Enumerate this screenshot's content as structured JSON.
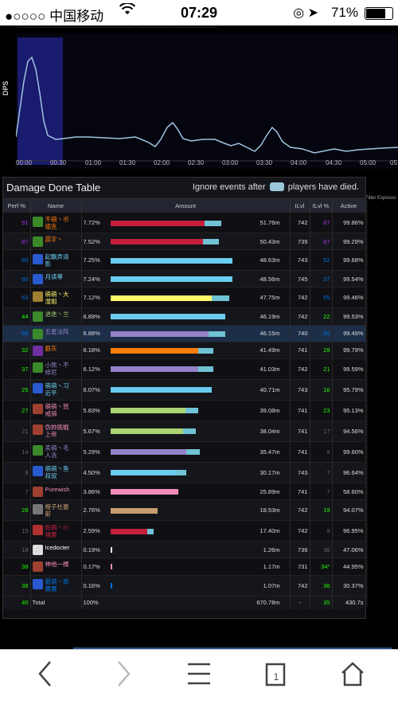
{
  "status": {
    "carrier": "●○○○○ 中国移动",
    "time": "07:29",
    "battery": "71%"
  },
  "graph": {
    "ylabel": "DPS",
    "ticks": [
      "00:00",
      "00:30",
      "01:00",
      "01:30",
      "02:00",
      "02:30",
      "03:00",
      "03:30",
      "04:00",
      "04:30",
      "05:00",
      "05"
    ]
  },
  "panel": {
    "title": "Damage Done Table",
    "ignore_pre": "Ignore events after",
    "ignore_post": "players have died.",
    "filter_label": "Filter Expressi",
    "headers": {
      "perf": "Perf %",
      "name": "Name",
      "amount": "Amount",
      "ilvl": "ILvl",
      "ilvlp": "ILvl %",
      "active": "Active"
    }
  },
  "rows": [
    {
      "perf": "91",
      "name": "不萌丶币\n德克",
      "pct": "7.72%",
      "amt": "51.76m",
      "ilvl": "742",
      "ilp": "87",
      "act": "99.86%",
      "bar": 0.82,
      "color": "#c41f3b",
      "bar2": "#6fc3d4",
      "perfc": "#a335ee",
      "namec": "#ff7d0a",
      "icon": "#3a8a2a"
    },
    {
      "perf": "87",
      "name": "晨宇丶",
      "pct": "7.52%",
      "amt": "50.43m",
      "ilvl": "739",
      "ilp": "87",
      "act": "99.29%",
      "bar": 0.8,
      "color": "#c41f3b",
      "bar2": "#6fc3d4",
      "perfc": "#a335ee",
      "namec": "#ff7d0a",
      "icon": "#3a8a2a"
    },
    {
      "perf": "60",
      "name": "起飘弄清\n影",
      "pct": "7.25%",
      "amt": "48.63m",
      "ilvl": "743",
      "ilp": "52",
      "act": "99.68%",
      "bar": 0.9,
      "color": "#69ccf0",
      "bar2": "#69ccf0",
      "perfc": "#0070dd",
      "namec": "#69ccf0",
      "icon": "#2a5ad0"
    },
    {
      "perf": "60",
      "name": "月读尊",
      "pct": "7.24%",
      "amt": "48.56m",
      "ilvl": "745",
      "ilp": "37",
      "act": "99.54%",
      "bar": 0.9,
      "color": "#69ccf0",
      "bar2": "#69ccf0",
      "perfc": "#0070dd",
      "namec": "#69ccf0",
      "icon": "#2a5ad0"
    },
    {
      "perf": "63",
      "name": "萌萌丶大\n湿姐",
      "pct": "7.12%",
      "amt": "47.75m",
      "ilvl": "742",
      "ilp": "55",
      "act": "99.46%",
      "bar": 0.88,
      "color": "#fff569",
      "bar2": "#6fc3d4",
      "perfc": "#0070dd",
      "namec": "#fff569",
      "icon": "#a08030"
    },
    {
      "perf": "44",
      "name": "进迭丶兰",
      "pct": "6.89%",
      "amt": "46.19m",
      "ilvl": "742",
      "ilp": "22",
      "act": "99.53%",
      "bar": 0.85,
      "color": "#69ccf0",
      "bar2": "#69ccf0",
      "perfc": "#1eff00",
      "namec": "#abd473",
      "icon": "#3a8a2a"
    },
    {
      "perf": "66",
      "name": "五星法阵",
      "pct": "6.88%",
      "amt": "46.15m",
      "ilvl": "740",
      "ilp": "80",
      "act": "99.49%",
      "bar": 0.85,
      "color": "#9482c9",
      "bar2": "#6fc3d4",
      "perfc": "#0070dd",
      "namec": "#9482c9",
      "icon": "#3a8a2a",
      "sel": true
    },
    {
      "perf": "32",
      "name": "狠灰",
      "pct": "6.18%",
      "amt": "41.49m",
      "ilvl": "741",
      "ilp": "28",
      "act": "99.79%",
      "bar": 0.76,
      "color": "#ff7d0a",
      "bar2": "#6fc3d4",
      "perfc": "#1eff00",
      "namec": "#ff7d0a",
      "icon": "#7030a0"
    },
    {
      "perf": "37",
      "name": "小熊丶不\n修尼",
      "pct": "6.12%",
      "amt": "41.03m",
      "ilvl": "742",
      "ilp": "21",
      "act": "99.59%",
      "bar": 0.76,
      "color": "#9482c9",
      "bar2": "#6fc3d4",
      "perfc": "#1eff00",
      "namec": "#9482c9",
      "icon": "#3a8a2a"
    },
    {
      "perf": "25",
      "name": "萌萌丶习\n近平",
      "pct": "6.07%",
      "amt": "40.71m",
      "ilvl": "743",
      "ilp": "16",
      "act": "95.79%",
      "bar": 0.75,
      "color": "#69ccf0",
      "bar2": "#69ccf0",
      "perfc": "#1eff00",
      "namec": "#69ccf0",
      "icon": "#2a5ad0"
    },
    {
      "perf": "27",
      "name": "萌萌丶怒\n戒骑",
      "pct": "5.83%",
      "amt": "39.08m",
      "ilvl": "741",
      "ilp": "23",
      "act": "95.13%",
      "bar": 0.65,
      "color": "#abd473",
      "bar2": "#6fc3d4",
      "perfc": "#1eff00",
      "namec": "#f58cba",
      "icon": "#a04030"
    },
    {
      "perf": "21",
      "name": "伪妳挑戦\n上帝",
      "pct": "5.67%",
      "amt": "38.04m",
      "ilvl": "741",
      "ilp": "17",
      "act": "94.56%",
      "bar": 0.63,
      "color": "#abd473",
      "bar2": "#6fc3d4",
      "perfc": "#666",
      "namec": "#f58cba",
      "icon": "#a04030"
    },
    {
      "perf": "14",
      "name": "卖萌丶毛\n人洗",
      "pct": "5.29%",
      "amt": "35.47m",
      "ilvl": "741",
      "ilp": "9",
      "act": "99.60%",
      "bar": 0.66,
      "color": "#9482c9",
      "bar2": "#6fc3d4",
      "perfc": "#666",
      "namec": "#9482c9",
      "icon": "#3a8a2a"
    },
    {
      "perf": "8",
      "name": "萌萌丶鱼\n叔叔",
      "pct": "4.50%",
      "amt": "30.17m",
      "ilvl": "743",
      "ilp": "7",
      "act": "96.64%",
      "bar": 0.56,
      "color": "#69ccf0",
      "bar2": "#6fc3d4",
      "perfc": "#666",
      "namec": "#69ccf0",
      "icon": "#2a5ad0"
    },
    {
      "perf": "7",
      "name": "Purewish",
      "pct": "3.86%",
      "amt": "25.89m",
      "ilvl": "741",
      "ilp": "7",
      "act": "58.60%",
      "bar": 0.5,
      "color": "#f58cba",
      "bar2": "#f58cba",
      "perfc": "#666",
      "namec": "#f58cba",
      "icon": "#a04030"
    },
    {
      "perf": "28",
      "name": "橙子杜蕾\n斯",
      "pct": "2.76%",
      "amt": "18.53m",
      "ilvl": "742",
      "ilp": "19",
      "act": "94.07%",
      "bar": 0.35,
      "color": "#c79c6e",
      "bar2": "#c79c6e",
      "perfc": "#1eff00",
      "namec": "#c79c6e",
      "icon": "#777"
    },
    {
      "perf": "15",
      "name": "粉萌丶小\n福果",
      "pct": "2.59%",
      "amt": "17.40m",
      "ilvl": "742",
      "ilp": "9",
      "act": "96.95%",
      "bar": 0.32,
      "color": "#c41f3b",
      "bar2": "#6fc3d4",
      "perfc": "#666",
      "namec": "#c41f3b",
      "icon": "#b03030"
    },
    {
      "perf": "18",
      "name": "Icedocter",
      "pct": "0.19%",
      "amt": "1.26m",
      "ilvl": "736",
      "ilp": "36",
      "act": "47.06%",
      "bar": 0.02,
      "color": "#ffffff",
      "bar2": "#ffffff",
      "perfc": "#666",
      "namec": "#ffffff",
      "icon": "#ddd",
      "short": true
    },
    {
      "perf": "38",
      "name": "神他一棵",
      "pct": "0.17%",
      "amt": "1.17m",
      "ilvl": "731",
      "ilp": "34°",
      "act": "44.95%",
      "bar": 0.02,
      "color": "#f58cba",
      "bar2": "#f58cba",
      "perfc": "#1eff00",
      "namec": "#f58cba",
      "icon": "#a04030",
      "short": true
    },
    {
      "perf": "38",
      "name": "最萌丶郭\n寶寶",
      "pct": "0.16%",
      "amt": "1.07m",
      "ilvl": "742",
      "ilp": "36",
      "act": "30.37%",
      "bar": 0.015,
      "color": "#0070de",
      "bar2": "#0070de",
      "perfc": "#1eff00",
      "namec": "#0070de",
      "icon": "#2a5ad0"
    }
  ],
  "total": {
    "perf": "40",
    "name": "Total",
    "pct": "100%",
    "amt": "670.78m",
    "ilvl": "-",
    "ilp": "35",
    "act": "430.7s"
  }
}
